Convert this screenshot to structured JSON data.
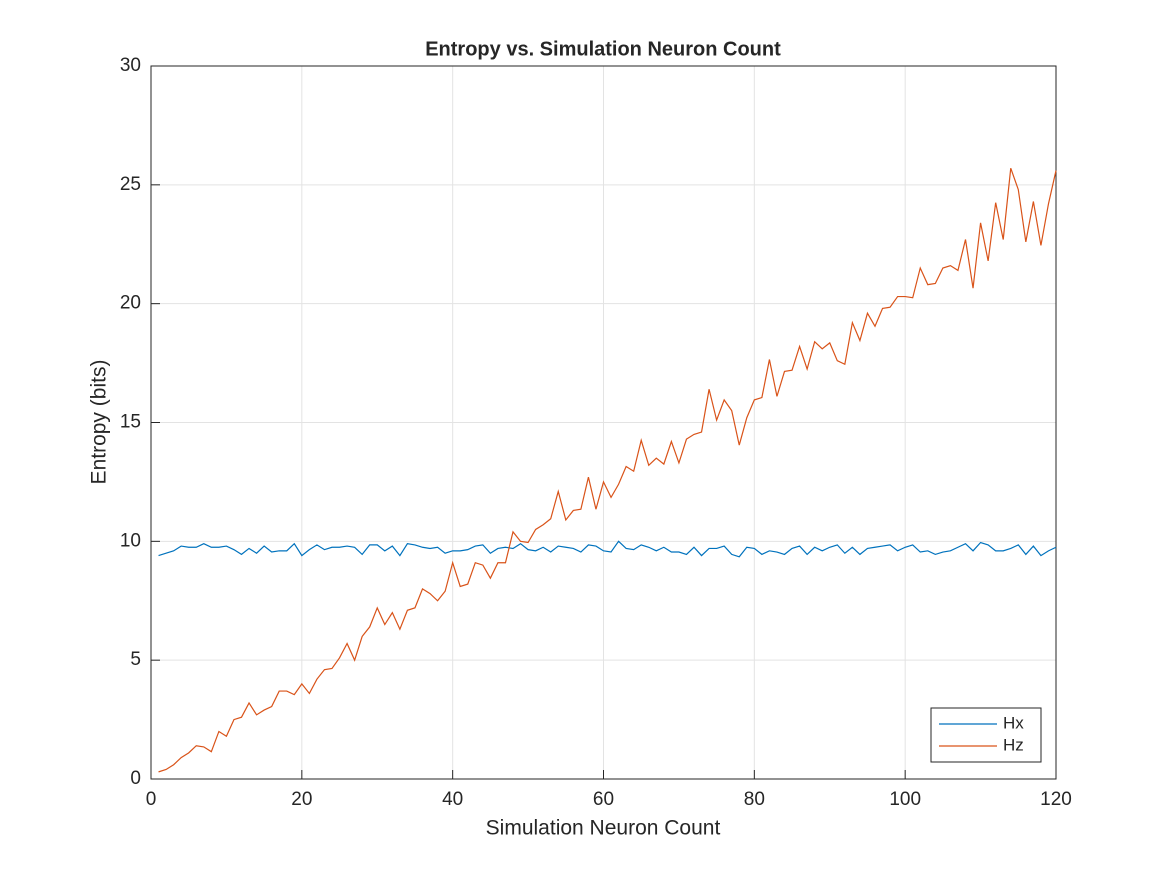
{
  "chart_data": {
    "type": "line",
    "title": "Entropy vs. Simulation Neuron Count",
    "xlabel": "Simulation Neuron Count",
    "ylabel": "Entropy (bits)",
    "x": [
      1,
      2,
      3,
      4,
      5,
      6,
      7,
      8,
      9,
      10,
      11,
      12,
      13,
      14,
      15,
      16,
      17,
      18,
      19,
      20,
      21,
      22,
      23,
      24,
      25,
      26,
      27,
      28,
      29,
      30,
      31,
      32,
      33,
      34,
      35,
      36,
      37,
      38,
      39,
      40,
      41,
      42,
      43,
      44,
      45,
      46,
      47,
      48,
      49,
      50,
      51,
      52,
      53,
      54,
      55,
      56,
      57,
      58,
      59,
      60,
      61,
      62,
      63,
      64,
      65,
      66,
      67,
      68,
      69,
      70,
      71,
      72,
      73,
      74,
      75,
      76,
      77,
      78,
      79,
      80,
      81,
      82,
      83,
      84,
      85,
      86,
      87,
      88,
      89,
      90,
      91,
      92,
      93,
      94,
      95,
      96,
      97,
      98,
      99,
      100,
      101,
      102,
      103,
      104,
      105,
      106,
      107,
      108,
      109,
      110,
      111,
      112,
      113,
      114,
      115,
      116,
      117,
      118,
      119,
      120
    ],
    "series": [
      {
        "name": "Hx",
        "color": "#0072BD",
        "values": [
          9.4,
          9.5,
          9.6,
          9.8,
          9.75,
          9.75,
          9.9,
          9.75,
          9.75,
          9.8,
          9.65,
          9.45,
          9.7,
          9.5,
          9.8,
          9.55,
          9.6,
          9.6,
          9.9,
          9.4,
          9.65,
          9.85,
          9.65,
          9.75,
          9.75,
          9.8,
          9.75,
          9.45,
          9.85,
          9.85,
          9.6,
          9.8,
          9.4,
          9.9,
          9.85,
          9.75,
          9.7,
          9.75,
          9.5,
          9.6,
          9.6,
          9.65,
          9.8,
          9.85,
          9.5,
          9.7,
          9.75,
          9.7,
          9.9,
          9.65,
          9.6,
          9.75,
          9.55,
          9.8,
          9.75,
          9.7,
          9.55,
          9.85,
          9.8,
          9.6,
          9.55,
          10.0,
          9.7,
          9.65,
          9.85,
          9.75,
          9.6,
          9.75,
          9.55,
          9.55,
          9.45,
          9.75,
          9.4,
          9.7,
          9.7,
          9.8,
          9.45,
          9.35,
          9.75,
          9.7,
          9.45,
          9.6,
          9.55,
          9.45,
          9.7,
          9.8,
          9.45,
          9.75,
          9.6,
          9.75,
          9.85,
          9.5,
          9.75,
          9.45,
          9.7,
          9.75,
          9.8,
          9.85,
          9.6,
          9.75,
          9.85,
          9.55,
          9.6,
          9.45,
          9.55,
          9.6,
          9.75,
          9.9,
          9.6,
          9.95,
          9.85,
          9.6,
          9.6,
          9.7,
          9.85,
          9.45,
          9.8,
          9.4,
          9.6,
          9.75
        ]
      },
      {
        "name": "Hz",
        "color": "#D95319",
        "values": [
          0.3,
          0.4,
          0.6,
          0.9,
          1.1,
          1.4,
          1.35,
          1.15,
          2.0,
          1.8,
          2.5,
          2.6,
          3.2,
          2.7,
          2.9,
          3.05,
          3.7,
          3.7,
          3.55,
          4.0,
          3.6,
          4.2,
          4.6,
          4.65,
          5.1,
          5.7,
          5.0,
          6.0,
          6.4,
          7.2,
          6.5,
          7.0,
          6.3,
          7.1,
          7.2,
          8.0,
          7.8,
          7.5,
          7.9,
          9.1,
          8.1,
          8.2,
          9.1,
          9.0,
          8.45,
          9.1,
          9.1,
          10.4,
          10.0,
          9.95,
          10.5,
          10.7,
          10.95,
          12.1,
          10.9,
          11.3,
          11.35,
          12.7,
          11.35,
          12.5,
          11.85,
          12.4,
          13.15,
          12.95,
          14.25,
          13.2,
          13.5,
          13.25,
          14.2,
          13.3,
          14.3,
          14.5,
          14.6,
          16.4,
          15.1,
          15.95,
          15.5,
          14.05,
          15.2,
          15.95,
          16.05,
          17.65,
          16.1,
          17.15,
          17.2,
          18.2,
          17.25,
          18.4,
          18.1,
          18.35,
          17.6,
          17.45,
          19.2,
          18.45,
          19.6,
          19.05,
          19.8,
          19.85,
          20.3,
          20.3,
          20.25,
          21.5,
          20.8,
          20.85,
          21.5,
          21.6,
          21.4,
          22.7,
          20.65,
          23.4,
          21.8,
          24.25,
          22.7,
          25.7,
          24.8,
          22.6,
          24.3,
          22.45,
          24.2,
          25.6
        ]
      }
    ],
    "xlim": [
      0,
      120
    ],
    "xticks": [
      0,
      20,
      40,
      60,
      80,
      100,
      120
    ],
    "ylim": [
      0,
      30
    ],
    "yticks": [
      0,
      5,
      10,
      15,
      20,
      25,
      30
    ],
    "grid": true,
    "legend_location": "southeast"
  }
}
